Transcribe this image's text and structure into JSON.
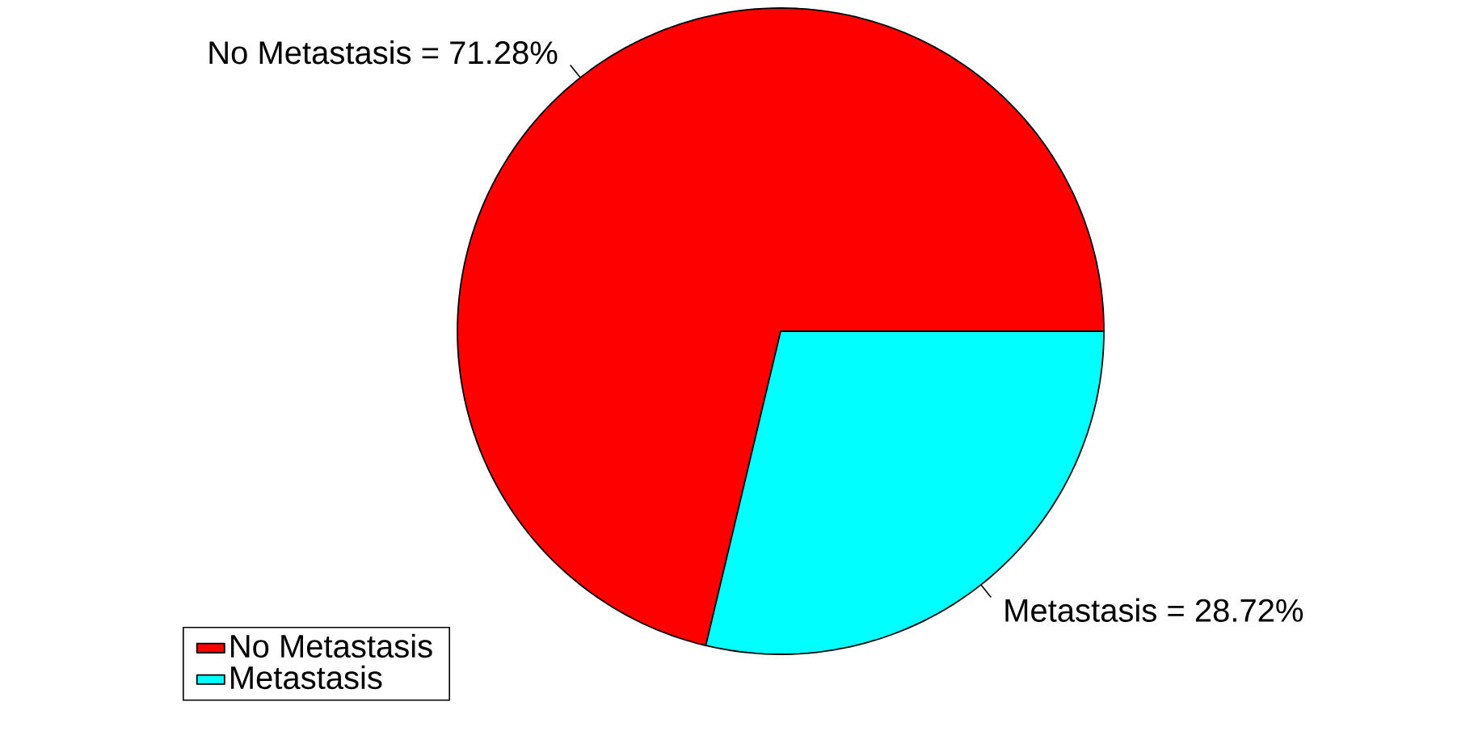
{
  "chart_data": {
    "type": "pie",
    "categories": [
      "No Metastasis",
      "Metastasis"
    ],
    "values": [
      71.28,
      28.72
    ],
    "colors": [
      "#ff0000",
      "#00ffff"
    ],
    "value_labels": [
      "No Metastasis = 71.28%",
      "Metastasis = 28.72%"
    ],
    "legend": "bottom left"
  }
}
